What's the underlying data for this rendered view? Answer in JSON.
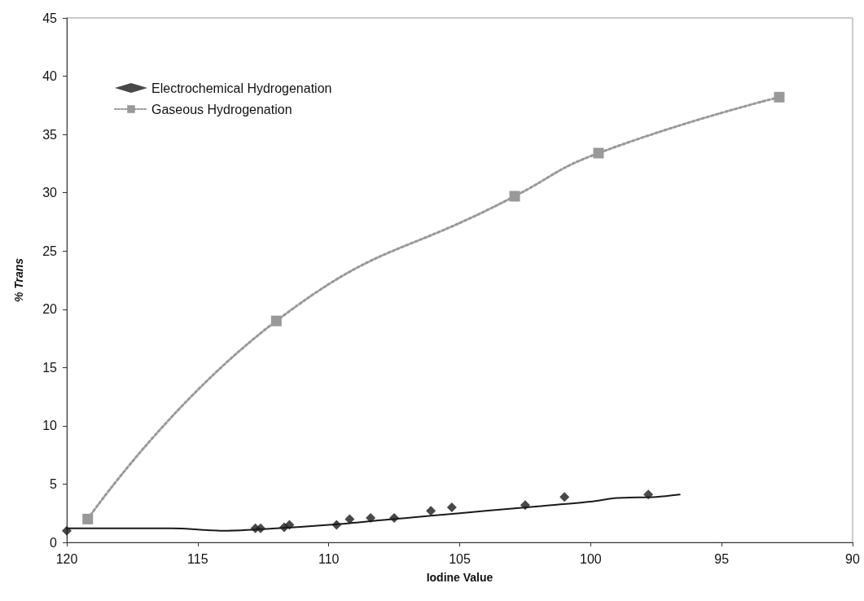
{
  "chart_data": {
    "type": "scatter",
    "xlabel": "Iodine Value",
    "ylabel": "% Trans",
    "xlim": [
      120,
      90
    ],
    "xticks": [
      120,
      115,
      110,
      105,
      100,
      95,
      90
    ],
    "ylim": [
      0,
      45
    ],
    "yticks": [
      0,
      5,
      10,
      15,
      20,
      25,
      30,
      35,
      40,
      45
    ],
    "grid": false,
    "legend": "top left",
    "series": [
      {
        "name": "Electrochemical Hydrogenation",
        "marker": "diamond",
        "color": "#1a1a1a",
        "x": [
          120.0,
          112.8,
          112.6,
          111.7,
          111.5,
          109.7,
          109.2,
          108.4,
          107.5,
          106.1,
          105.3,
          102.5,
          101.0,
          97.8
        ],
        "values": [
          1.0,
          1.2,
          1.2,
          1.3,
          1.5,
          1.5,
          2.0,
          2.1,
          2.1,
          2.7,
          3.0,
          3.2,
          3.9,
          4.1
        ]
      },
      {
        "type": "line",
        "marker": "none",
        "line_style": "solid",
        "color": "#1a1a1a",
        "x": [
          120,
          116,
          114,
          112,
          110,
          108,
          106,
          104,
          102,
          100,
          99,
          97.5,
          96.6
        ],
        "values": [
          1.2,
          1.2,
          1.0,
          1.2,
          1.5,
          1.9,
          2.3,
          2.7,
          3.1,
          3.5,
          3.8,
          3.9,
          4.1
        ]
      },
      {
        "name": "Gaseous Hydrogenation",
        "type": "line",
        "marker": "square",
        "line_style": "dotted",
        "color": "#999999",
        "x": [
          119.2,
          112.0,
          102.9,
          99.7,
          92.8
        ],
        "values": [
          2.0,
          19.0,
          29.7,
          33.4,
          38.2
        ]
      }
    ]
  }
}
